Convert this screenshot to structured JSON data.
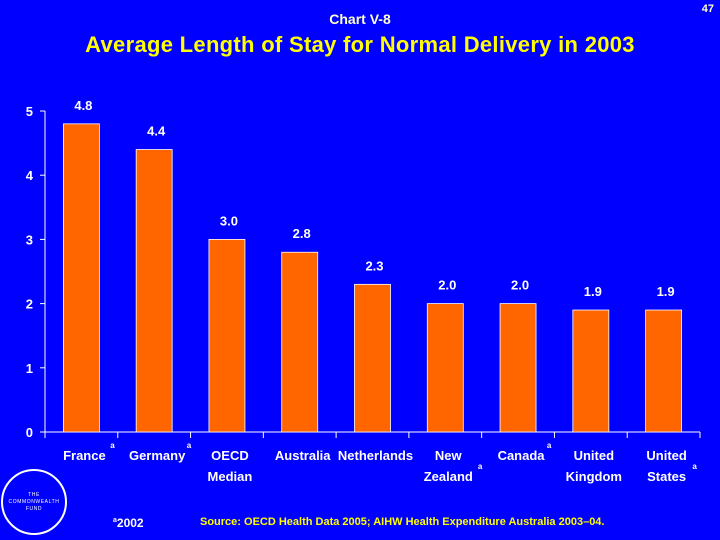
{
  "page_number": "47",
  "chart_label": "Chart V-8",
  "colors": {
    "background": "#0000ff",
    "bar": "#ff6600",
    "bar_stroke": "#ffffff",
    "title": "#ffff00"
  },
  "chart_data": {
    "type": "bar",
    "title": "Average Length of Stay for Normal Delivery in 2003",
    "xlabel": "",
    "ylabel": "",
    "ylim": [
      0,
      5
    ],
    "yticks": [
      "0",
      "1",
      "2",
      "3",
      "4",
      "5"
    ],
    "grid": false,
    "categories": [
      {
        "lines": [
          "France"
        ],
        "note": "a"
      },
      {
        "lines": [
          "Germany"
        ],
        "note": "a"
      },
      {
        "lines": [
          "OECD",
          "Median"
        ],
        "note": ""
      },
      {
        "lines": [
          "Australia"
        ],
        "note": ""
      },
      {
        "lines": [
          "Netherlands"
        ],
        "note": ""
      },
      {
        "lines": [
          "New",
          "Zealand"
        ],
        "note": "a"
      },
      {
        "lines": [
          "Canada"
        ],
        "note": "a"
      },
      {
        "lines": [
          "United",
          "Kingdom"
        ],
        "note": ""
      },
      {
        "lines": [
          "United",
          "States"
        ],
        "note": "a"
      }
    ],
    "values": [
      4.8,
      4.4,
      3.0,
      2.8,
      2.3,
      2.0,
      2.0,
      1.9,
      1.9
    ],
    "value_labels": [
      "4.8",
      "4.4",
      "3.0",
      "2.8",
      "2.3",
      "2.0",
      "2.0",
      "1.9",
      "1.9"
    ]
  },
  "logo": {
    "line1": "THE",
    "line2": "COMMONWEALTH",
    "line3": "FUND"
  },
  "footnote": {
    "mark": "a",
    "text": "2002"
  },
  "source": "Source: OECD Health Data 2005; AIHW Health Expenditure Australia 2003–04."
}
